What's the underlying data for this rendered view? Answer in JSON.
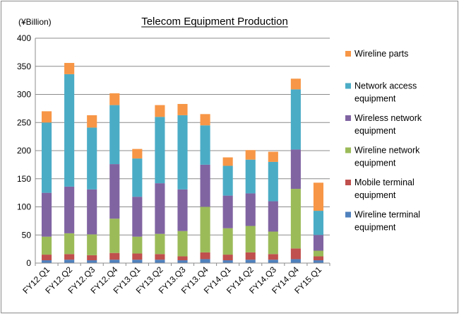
{
  "chart_data": {
    "type": "bar",
    "stacked": true,
    "title": "Telecom Equipment  Production",
    "unit_label": "(¥Billion)",
    "xlabel": "",
    "ylabel": "",
    "ylim": [
      0,
      400
    ],
    "yticks": [
      0,
      50,
      100,
      150,
      200,
      250,
      300,
      350,
      400
    ],
    "grid": true,
    "legend_position": "right",
    "categories": [
      "FY12.Q1",
      "FY12.Q2",
      "FY12.Q3",
      "FY12.Q4",
      "FY13.Q1",
      "FY13.Q2",
      "FY13.Q3",
      "FY13.Q4",
      "FY14.Q1",
      "FY14.Q2",
      "FY14.Q3",
      "FY14.Q4",
      "FY15.Q1"
    ],
    "series": [
      {
        "name": "Wireline terminal equipment",
        "legend_lines": [
          "Wireline terminal",
          "equipment"
        ],
        "color": "#4f81bd",
        "values": [
          5,
          6,
          5,
          6,
          6,
          6,
          5,
          7,
          5,
          6,
          6,
          7,
          5
        ]
      },
      {
        "name": "Mobile terminal equipment",
        "legend_lines": [
          "Mobile terminal",
          "equipment"
        ],
        "color": "#c0504d",
        "values": [
          10,
          10,
          9,
          12,
          11,
          10,
          7,
          12,
          10,
          13,
          10,
          19,
          7
        ]
      },
      {
        "name": "Wireline network equipment",
        "legend_lines": [
          "Wireline network",
          "equipment"
        ],
        "color": "#9bbb59",
        "values": [
          32,
          37,
          37,
          61,
          30,
          36,
          45,
          81,
          47,
          47,
          40,
          106,
          10
        ]
      },
      {
        "name": "Wireless network equipment",
        "legend_lines": [
          "Wireless network",
          "equipment"
        ],
        "color": "#8064a2",
        "values": [
          78,
          83,
          80,
          97,
          71,
          90,
          74,
          75,
          58,
          58,
          54,
          70,
          28
        ]
      },
      {
        "name": "Network access equipment",
        "legend_lines": [
          "Network access",
          "equipment"
        ],
        "color": "#4bacc6",
        "values": [
          125,
          200,
          110,
          105,
          68,
          118,
          132,
          70,
          53,
          60,
          70,
          107,
          43
        ]
      },
      {
        "name": "Wireline parts",
        "legend_lines": [
          "Wireline parts"
        ],
        "color": "#f79646",
        "values": [
          20,
          20,
          22,
          21,
          17,
          21,
          20,
          20,
          15,
          17,
          18,
          19,
          50
        ]
      }
    ]
  }
}
